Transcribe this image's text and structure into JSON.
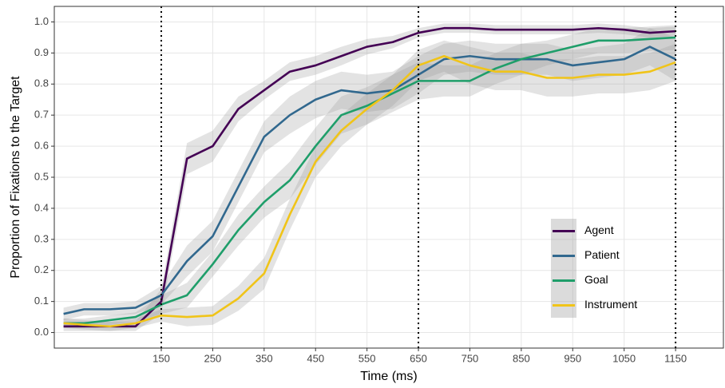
{
  "chart_data": {
    "type": "line",
    "x_label": "Time (ms)",
    "y_label": "Proportion of Fixations to the Target",
    "x": [
      -40,
      0,
      50,
      100,
      150,
      200,
      250,
      300,
      350,
      400,
      450,
      500,
      550,
      600,
      650,
      700,
      750,
      800,
      850,
      900,
      950,
      1000,
      1050,
      1100,
      1150
    ],
    "series": [
      {
        "name": "Agent",
        "color": "#440154",
        "values": [
          0.02,
          0.02,
          0.02,
          0.02,
          0.1,
          0.56,
          0.6,
          0.72,
          0.78,
          0.84,
          0.86,
          0.89,
          0.92,
          0.935,
          0.965,
          0.98,
          0.98,
          0.975,
          0.975,
          0.975,
          0.975,
          0.98,
          0.975,
          0.965,
          0.97
        ],
        "error": [
          0.015,
          0.015,
          0.015,
          0.015,
          0.04,
          0.05,
          0.05,
          0.04,
          0.03,
          0.03,
          0.03,
          0.03,
          0.025,
          0.02,
          0.015,
          0.015,
          0.015,
          0.015,
          0.015,
          0.015,
          0.015,
          0.015,
          0.015,
          0.015,
          0.015
        ]
      },
      {
        "name": "Patient",
        "color": "#31688e",
        "values": [
          0.06,
          0.075,
          0.075,
          0.08,
          0.12,
          0.23,
          0.31,
          0.47,
          0.63,
          0.7,
          0.75,
          0.78,
          0.77,
          0.78,
          0.83,
          0.88,
          0.89,
          0.88,
          0.88,
          0.88,
          0.86,
          0.87,
          0.88,
          0.92,
          0.88
        ],
        "error": [
          0.02,
          0.02,
          0.02,
          0.02,
          0.03,
          0.05,
          0.05,
          0.05,
          0.05,
          0.06,
          0.06,
          0.06,
          0.06,
          0.06,
          0.06,
          0.05,
          0.05,
          0.05,
          0.05,
          0.05,
          0.05,
          0.05,
          0.05,
          0.06,
          0.07
        ]
      },
      {
        "name": "Goal",
        "color": "#1f9e6a",
        "values": [
          0.03,
          0.03,
          0.04,
          0.05,
          0.09,
          0.12,
          0.22,
          0.33,
          0.42,
          0.49,
          0.6,
          0.7,
          0.73,
          0.77,
          0.81,
          0.81,
          0.81,
          0.85,
          0.88,
          0.9,
          0.92,
          0.94,
          0.94,
          0.945,
          0.95
        ],
        "error": [
          0.015,
          0.015,
          0.015,
          0.015,
          0.03,
          0.04,
          0.04,
          0.05,
          0.05,
          0.06,
          0.06,
          0.06,
          0.06,
          0.06,
          0.06,
          0.05,
          0.05,
          0.05,
          0.05,
          0.04,
          0.04,
          0.04,
          0.04,
          0.04,
          0.04
        ]
      },
      {
        "name": "Instrument",
        "color": "#f0c419",
        "values": [
          0.03,
          0.025,
          0.02,
          0.03,
          0.055,
          0.05,
          0.055,
          0.11,
          0.19,
          0.38,
          0.55,
          0.65,
          0.72,
          0.78,
          0.86,
          0.89,
          0.86,
          0.84,
          0.84,
          0.82,
          0.82,
          0.83,
          0.83,
          0.84,
          0.87
        ],
        "error": [
          0.015,
          0.015,
          0.015,
          0.015,
          0.02,
          0.03,
          0.03,
          0.04,
          0.05,
          0.05,
          0.05,
          0.05,
          0.05,
          0.05,
          0.05,
          0.05,
          0.06,
          0.06,
          0.06,
          0.06,
          0.06,
          0.06,
          0.06,
          0.06,
          0.06
        ]
      }
    ],
    "xlim": [
      -58,
      1243
    ],
    "ylim": [
      -0.05,
      1.05
    ],
    "xticks": [
      150,
      250,
      350,
      450,
      550,
      650,
      750,
      850,
      950,
      1050,
      1150
    ],
    "yticks": [
      {
        "value": 0,
        "label": "0.0"
      },
      0.1,
      0.2,
      0.3,
      0.4,
      0.5,
      0.6,
      0.7,
      0.8,
      0.9,
      {
        "value": 1,
        "label": "1.0"
      }
    ],
    "vlines": [
      150,
      650,
      1150
    ],
    "grid": true,
    "legend": "bottom-right"
  }
}
